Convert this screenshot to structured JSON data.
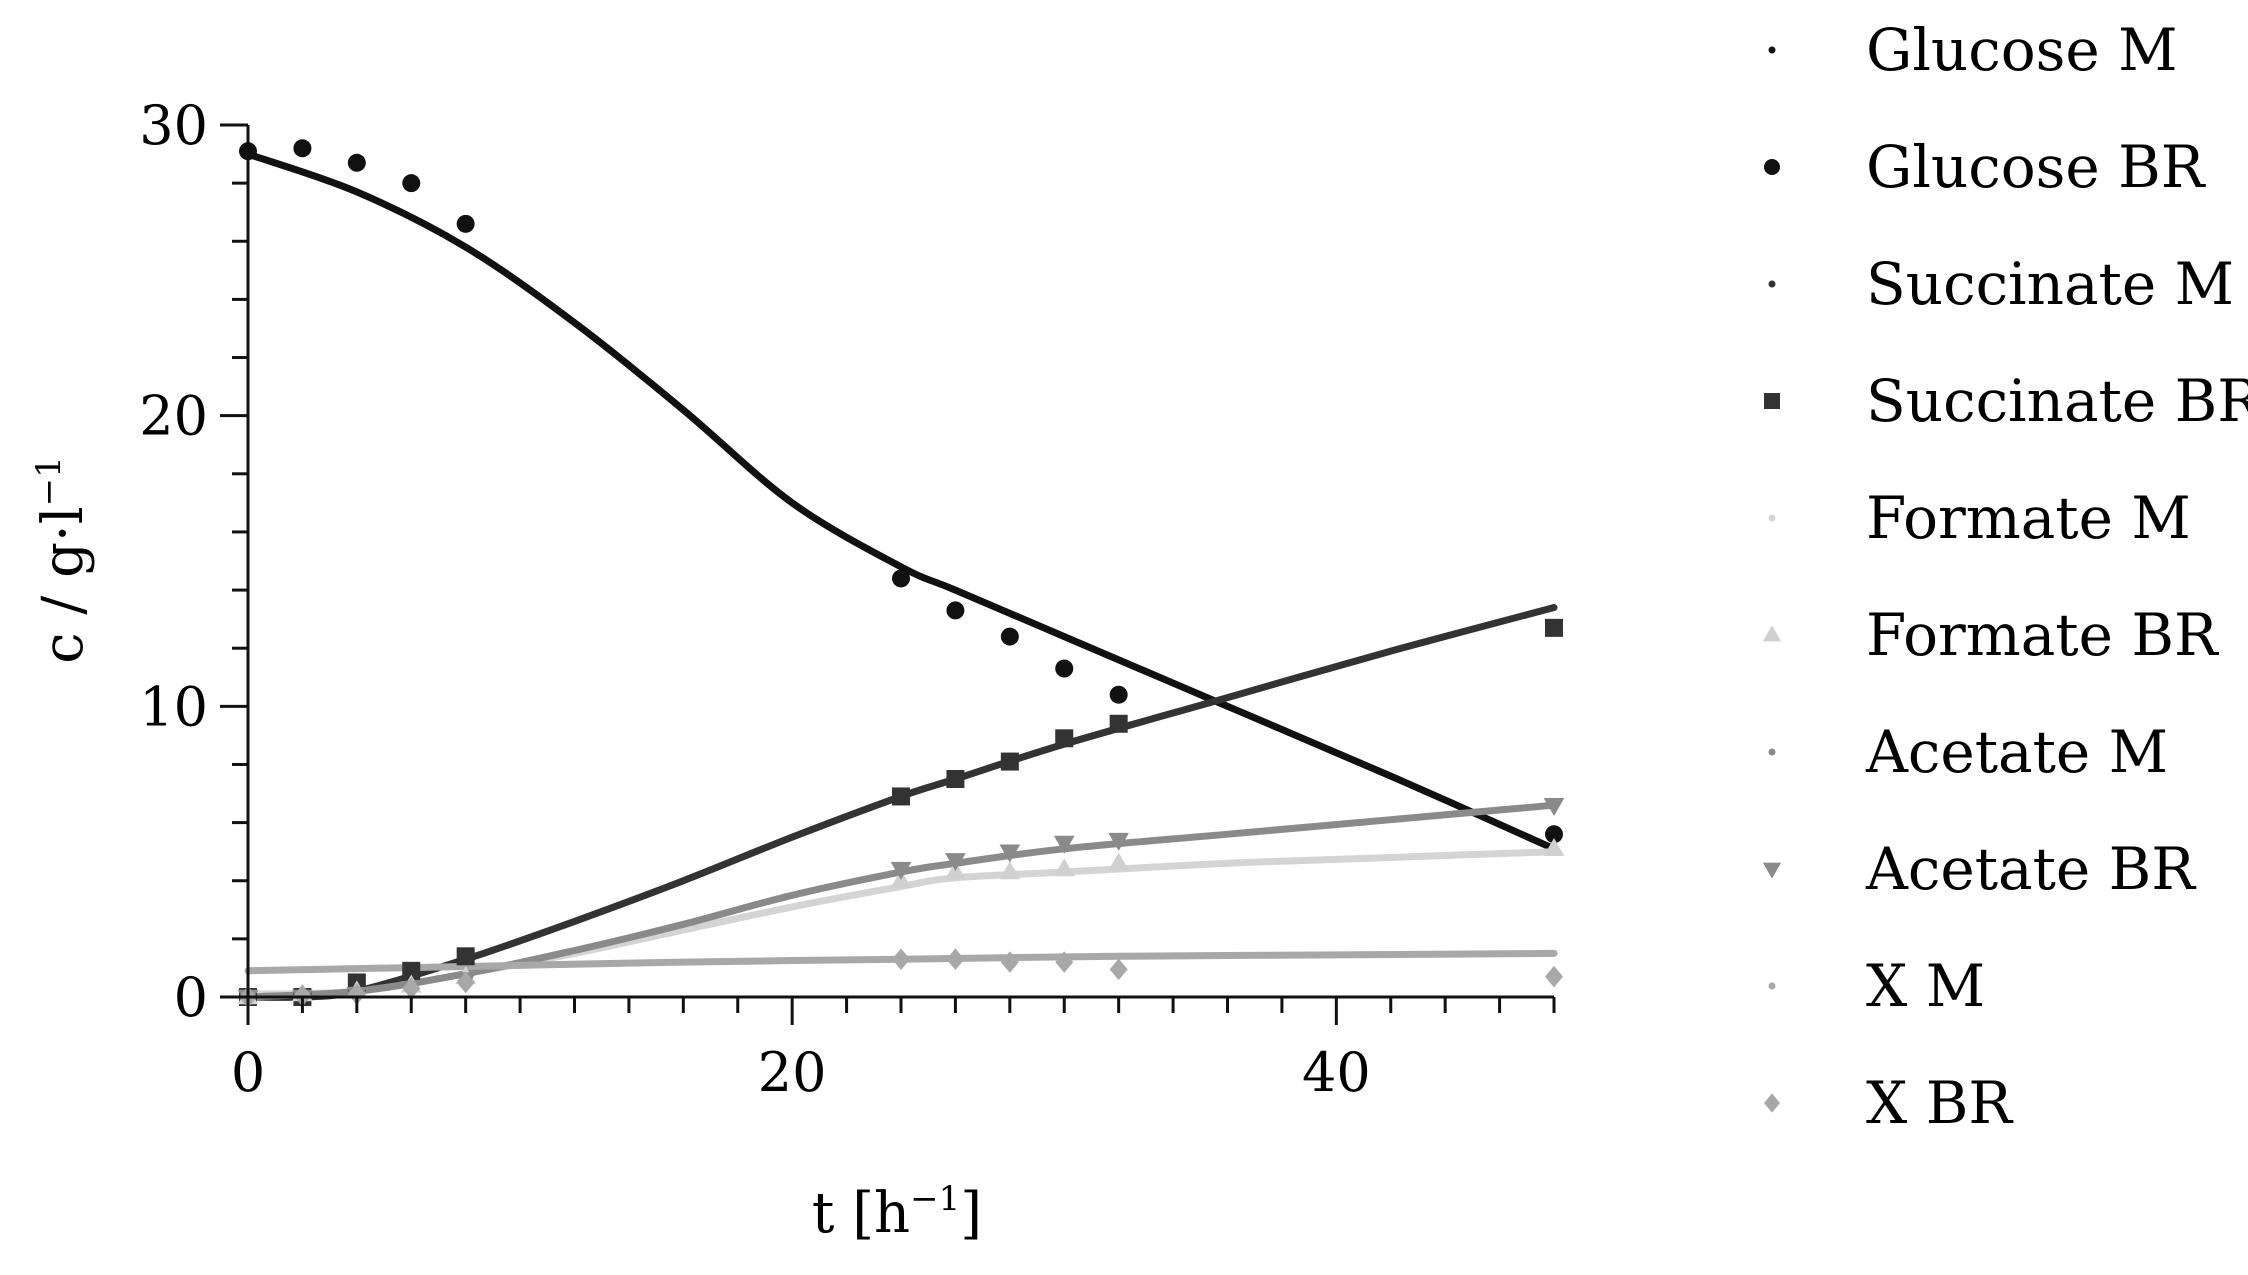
{
  "chart_data": {
    "type": "scatter",
    "title": "",
    "xlabel": {
      "base": "t [h",
      "sup": "−1",
      "close": "]"
    },
    "ylabel": {
      "base": "c / g·l",
      "sup": "−1"
    },
    "xlim": [
      0,
      48
    ],
    "ylim": [
      0,
      30
    ],
    "xticks": [
      0,
      20,
      40
    ],
    "yticks": [
      0,
      10,
      20,
      30
    ],
    "grid": false,
    "legend_position": "right",
    "series": [
      {
        "name": "Glucose M",
        "kind": "line",
        "color": "#111111",
        "x": [
          0,
          4,
          8,
          12,
          16,
          20,
          24,
          26,
          30,
          36,
          42,
          48
        ],
        "y": [
          29.0,
          27.7,
          25.8,
          23.2,
          20.2,
          17.0,
          14.8,
          14.0,
          12.4,
          10.0,
          7.6,
          5.1
        ]
      },
      {
        "name": "Glucose BR",
        "kind": "points",
        "marker": "circle",
        "color": "#111111",
        "x": [
          0,
          2,
          4,
          6,
          8,
          24,
          26,
          28,
          30,
          32,
          48
        ],
        "y": [
          29.1,
          29.2,
          28.7,
          28.0,
          26.6,
          14.4,
          13.3,
          12.4,
          11.3,
          10.4,
          5.6
        ]
      },
      {
        "name": "Succinate M",
        "kind": "line",
        "color": "#333333",
        "x": [
          0,
          2,
          4,
          8,
          12,
          16,
          20,
          24,
          26,
          30,
          36,
          42,
          48
        ],
        "y": [
          0.0,
          0.0,
          0.2,
          1.3,
          2.6,
          4.0,
          5.5,
          6.9,
          7.5,
          8.7,
          10.3,
          11.9,
          13.4
        ]
      },
      {
        "name": "Succinate BR",
        "kind": "points",
        "marker": "square",
        "color": "#333333",
        "x": [
          0,
          2,
          4,
          6,
          8,
          24,
          26,
          28,
          30,
          32,
          48
        ],
        "y": [
          0.0,
          0.0,
          0.5,
          0.9,
          1.4,
          6.9,
          7.5,
          8.1,
          8.9,
          9.4,
          12.7
        ]
      },
      {
        "name": "Formate M",
        "kind": "line",
        "color": "#d4d4d4",
        "x": [
          0,
          4,
          8,
          12,
          16,
          20,
          24,
          26,
          30,
          36,
          42,
          48
        ],
        "y": [
          0.1,
          0.2,
          0.8,
          1.5,
          2.3,
          3.1,
          3.8,
          4.1,
          4.3,
          4.6,
          4.8,
          5.0
        ]
      },
      {
        "name": "Formate BR",
        "kind": "points",
        "marker": "triangle-up",
        "color": "#d0d0d0",
        "x": [
          0,
          2,
          4,
          6,
          8,
          24,
          26,
          28,
          30,
          32,
          48
        ],
        "y": [
          0.0,
          0.1,
          0.2,
          0.4,
          0.7,
          4.0,
          4.3,
          4.3,
          4.4,
          4.6,
          5.1
        ]
      },
      {
        "name": "Acetate M",
        "kind": "line",
        "color": "#8a8a8a",
        "x": [
          0,
          4,
          8,
          12,
          16,
          20,
          24,
          26,
          30,
          36,
          42,
          48
        ],
        "y": [
          0.0,
          0.2,
          0.8,
          1.6,
          2.5,
          3.5,
          4.3,
          4.6,
          5.1,
          5.6,
          6.1,
          6.6
        ]
      },
      {
        "name": "Acetate BR",
        "kind": "points",
        "marker": "triangle-down",
        "color": "#8a8a8a",
        "x": [
          0,
          2,
          4,
          6,
          8,
          24,
          26,
          28,
          30,
          32,
          48
        ],
        "y": [
          0.0,
          0.0,
          0.1,
          0.3,
          0.6,
          4.4,
          4.7,
          5.0,
          5.3,
          5.4,
          6.6
        ]
      },
      {
        "name": "X M",
        "kind": "line",
        "color": "#a8a8a8",
        "x": [
          0,
          8,
          16,
          24,
          32,
          40,
          48
        ],
        "y": [
          0.9,
          1.05,
          1.2,
          1.3,
          1.4,
          1.45,
          1.5
        ]
      },
      {
        "name": "X BR",
        "kind": "points",
        "marker": "diamond",
        "color": "#a8a8a8",
        "x": [
          0,
          2,
          4,
          6,
          8,
          24,
          26,
          28,
          30,
          32,
          48
        ],
        "y": [
          0.0,
          0.05,
          0.1,
          0.3,
          0.5,
          1.3,
          1.3,
          1.2,
          1.2,
          0.95,
          0.7
        ]
      }
    ]
  }
}
